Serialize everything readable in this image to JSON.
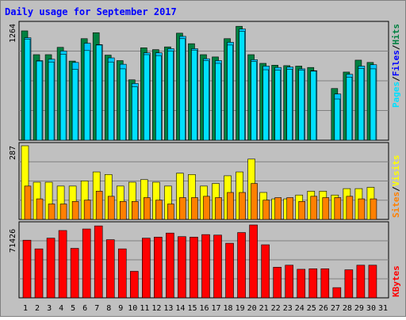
{
  "title": "Daily usage for September 2017",
  "colors": {
    "background": "#C0C0C0",
    "hits": "#008040",
    "files": "#00C8FF",
    "pages": "#00E0FF",
    "visits": "#FFFF00",
    "sites": "#FF8000",
    "kbytes": "#FF0000",
    "title": "#0000FF",
    "weekend_label": "#008040"
  },
  "labels": {
    "pages": "Pages",
    "files": "Files",
    "hits": "Hits",
    "visits": "Visits",
    "sites": "Sites",
    "kbytes": "KBytes",
    "slash": "/"
  },
  "chart_data": {
    "type": "bar",
    "title": "Daily usage for September 2017",
    "categories": [
      "1",
      "2",
      "3",
      "4",
      "5",
      "6",
      "7",
      "8",
      "9",
      "10",
      "11",
      "12",
      "13",
      "14",
      "15",
      "16",
      "17",
      "18",
      "19",
      "20",
      "21",
      "22",
      "23",
      "24",
      "25",
      "26",
      "27",
      "28",
      "29",
      "30",
      "31"
    ],
    "weekend_days": [
      "2",
      "3",
      "9",
      "10",
      "16",
      "17",
      "23",
      "24",
      "30",
      "31"
    ],
    "panels": [
      {
        "name": "hits-files-pages",
        "ymax": 1264,
        "ymax_label": "1264",
        "series": [
          {
            "name": "Hits",
            "values": [
              1195,
              935,
              935,
              1015,
              865,
              1110,
              1175,
              930,
              870,
              660,
              1010,
              990,
              1020,
              1170,
              1055,
              935,
              910,
              1110,
              1245,
              935,
              840,
              820,
              815,
              810,
              795,
              0,
              565,
              745,
              875,
              850,
              0
            ]
          },
          {
            "name": "Files",
            "values": [
              1120,
              870,
              885,
              975,
              850,
              1060,
              1045,
              900,
              830,
              620,
              955,
              955,
              1000,
              1135,
              1000,
              890,
              870,
              1070,
              1215,
              880,
              810,
              795,
              800,
              780,
              760,
              0,
              505,
              720,
              810,
              825,
              0
            ]
          },
          {
            "name": "Pages",
            "values": [
              1105,
              865,
              855,
              940,
              775,
              980,
              1040,
              855,
              780,
              585,
              935,
              925,
              975,
              1110,
              985,
              870,
              840,
              1040,
              1190,
              860,
              770,
              765,
              775,
              765,
              755,
              0,
              450,
              690,
              785,
              780,
              0
            ]
          }
        ]
      },
      {
        "name": "visits-sites",
        "ymax": 287,
        "ymax_label": "287",
        "series": [
          {
            "name": "Visits",
            "values": [
              287,
              145,
              145,
              130,
              130,
              150,
              185,
              175,
              130,
              145,
              155,
              145,
              130,
              180,
              175,
              130,
              140,
              170,
              185,
              235,
              105,
              80,
              80,
              95,
              110,
              110,
              95,
              120,
              120,
              125,
              0
            ]
          },
          {
            "name": "Sites",
            "values": [
              130,
              80,
              60,
              60,
              70,
              75,
              110,
              90,
              70,
              70,
              85,
              75,
              60,
              85,
              85,
              90,
              85,
              105,
              105,
              140,
              75,
              85,
              85,
              70,
              90,
              85,
              85,
              90,
              80,
              80,
              0
            ]
          }
        ]
      },
      {
        "name": "kbytes",
        "ymax": 71426,
        "ymax_label": "71426",
        "series": [
          {
            "name": "KBytes",
            "values": [
              56500,
              48000,
              58500,
              66000,
              48500,
              67500,
              70500,
              57000,
              48000,
              26000,
              58500,
              59500,
              63500,
              60000,
              59500,
              62000,
              61500,
              53500,
              64000,
              71426,
              52000,
              30000,
              32000,
              28000,
              28500,
              28500,
              10000,
              27500,
              32000,
              32000,
              0
            ]
          }
        ]
      }
    ]
  }
}
